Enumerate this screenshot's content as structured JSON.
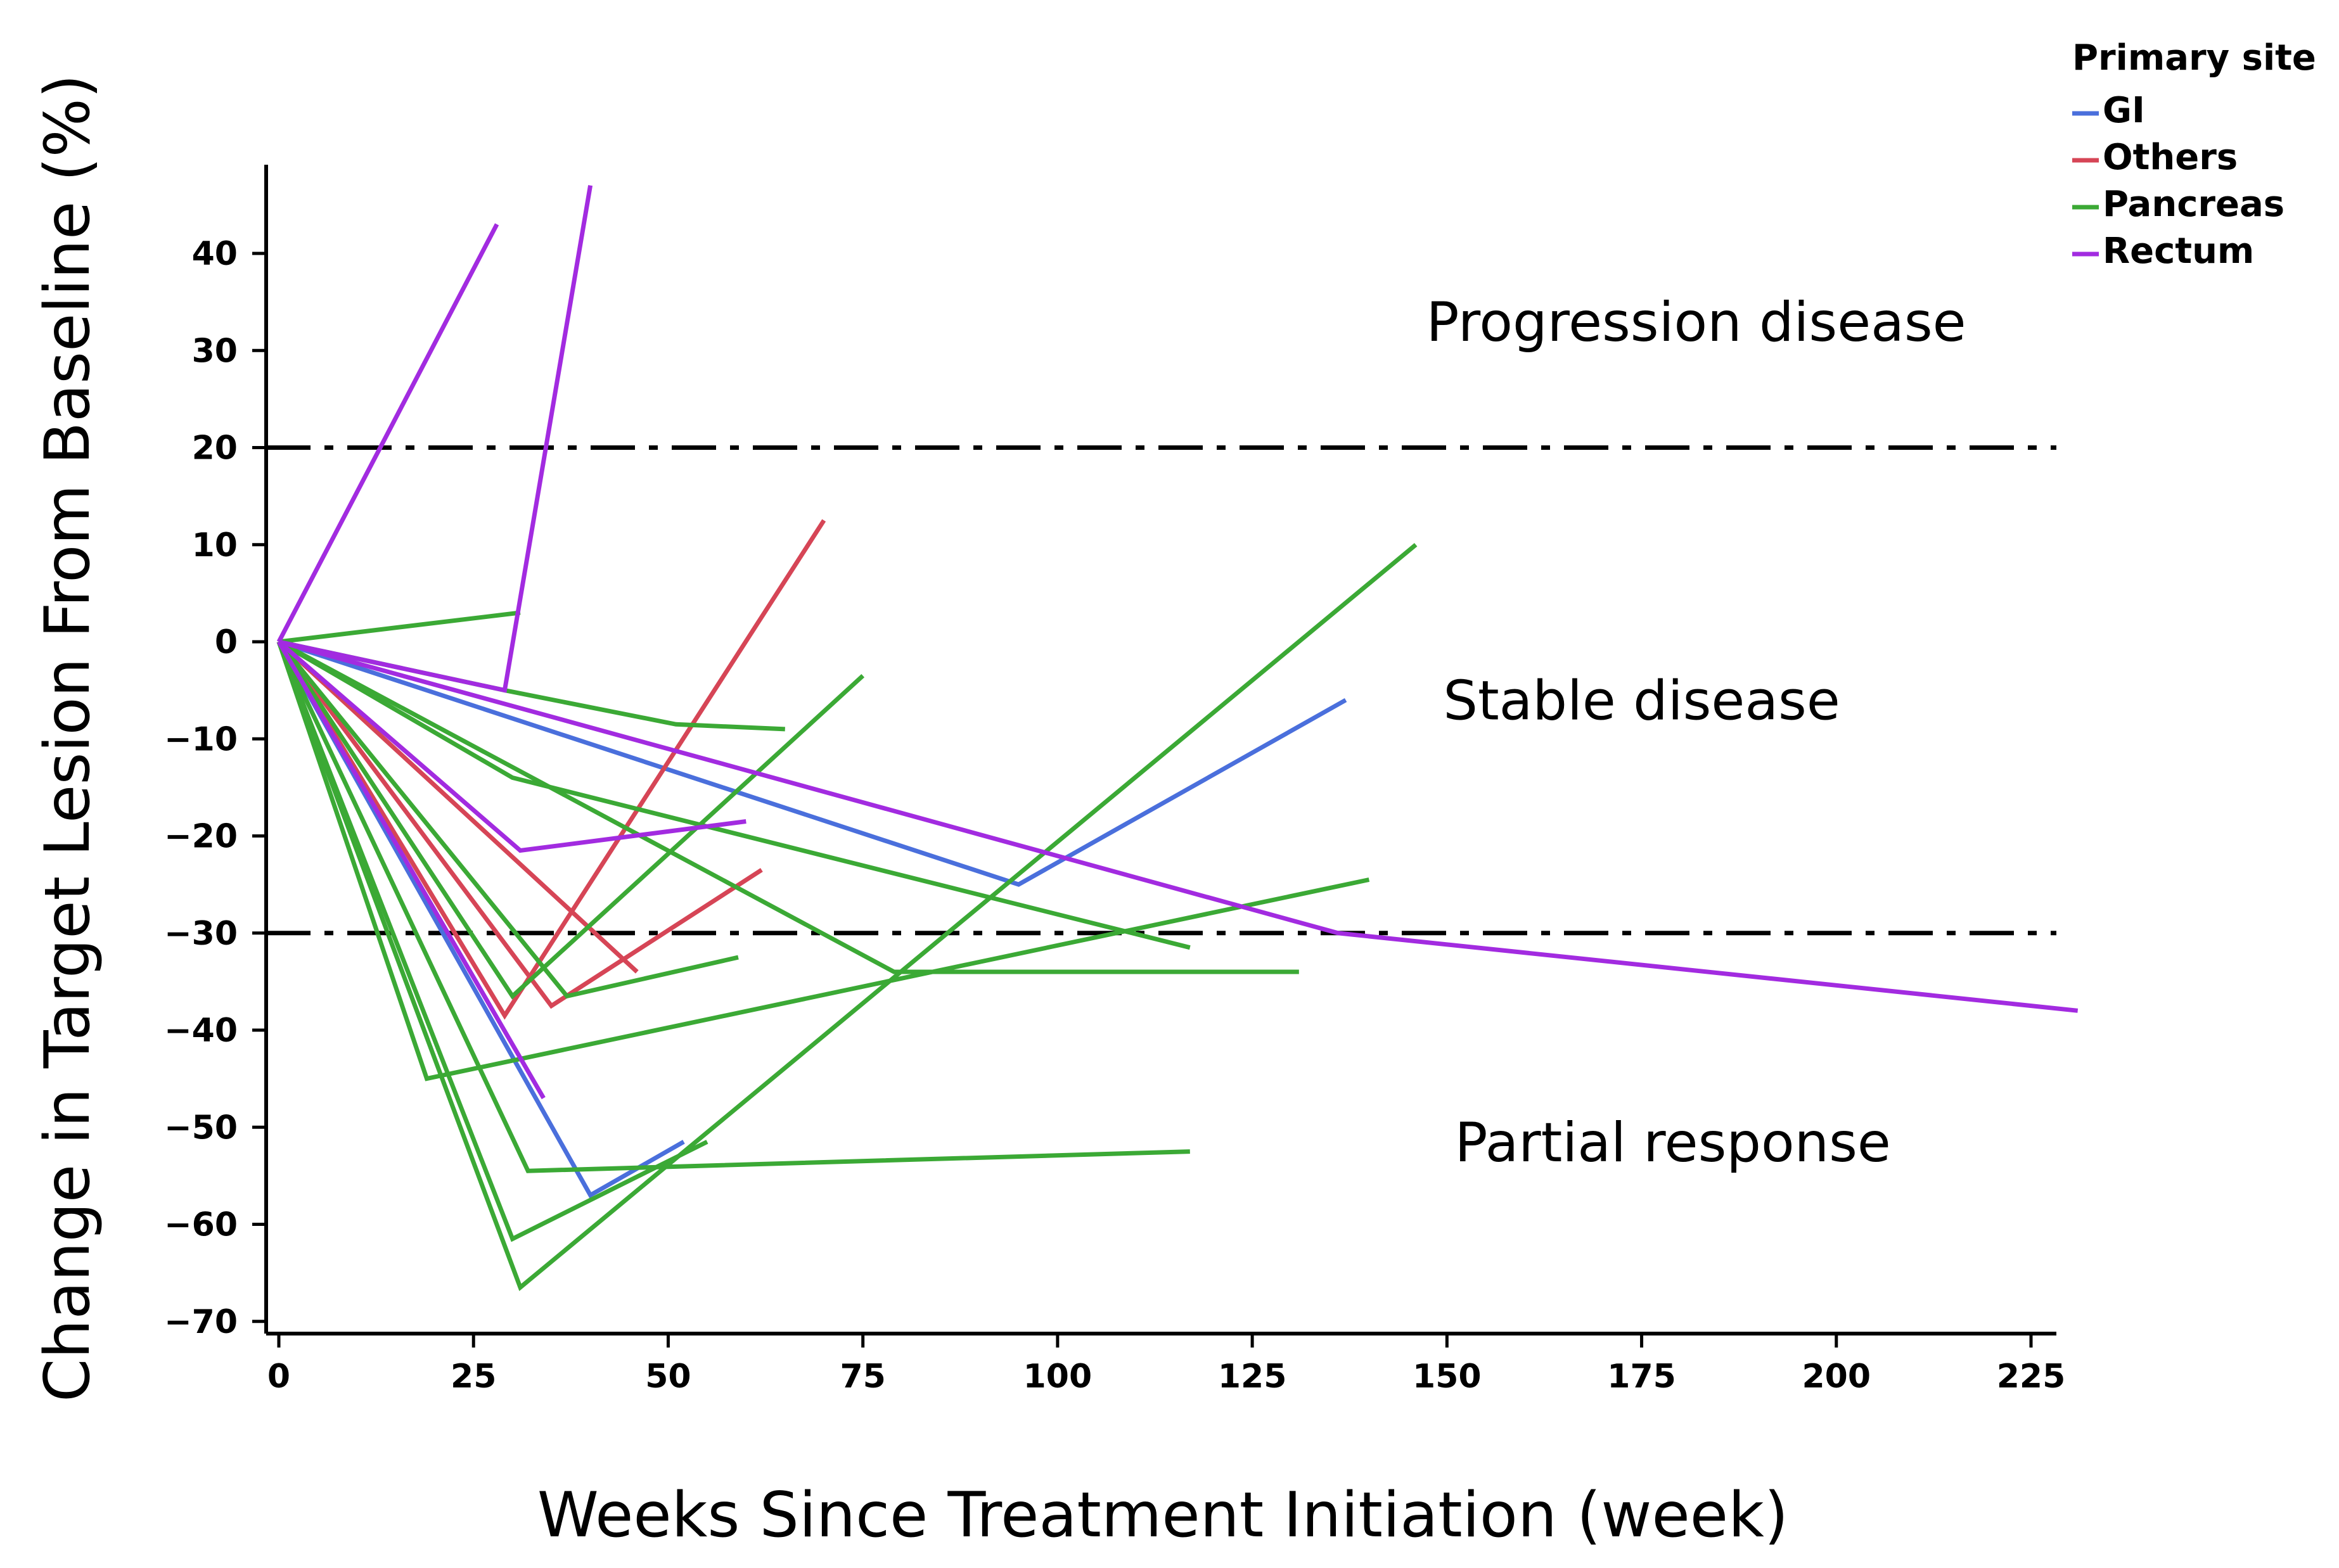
{
  "chart_data": {
    "type": "line",
    "title": "",
    "xlabel": "Weeks Since Treatment Initiation (week)",
    "ylabel": "Change in Target Lesion From Baseline (%)",
    "xlim": [
      -2,
      235
    ],
    "ylim": [
      -71,
      49
    ],
    "xticks": [
      0,
      25,
      50,
      75,
      100,
      125,
      150,
      175,
      200,
      225
    ],
    "yticks": [
      40,
      30,
      20,
      10,
      0,
      -10,
      -20,
      -30,
      -40,
      -50,
      -60,
      -70
    ],
    "reference_lines": [
      20,
      -30
    ],
    "regions": [
      {
        "label": "Progression disease",
        "x": 182,
        "y": 31
      },
      {
        "label": "Stable disease",
        "x": 175,
        "y": -8
      },
      {
        "label": "Partial response",
        "x": 179,
        "y": -53.5
      }
    ],
    "legend": {
      "title": "Primary site",
      "position": "top-right",
      "entries": [
        {
          "name": "GI",
          "color": "#4a6fdc"
        },
        {
          "name": "Others",
          "color": "#d64556"
        },
        {
          "name": "Pancreas",
          "color": "#3ba935"
        },
        {
          "name": "Rectum",
          "color": "#a22be0"
        }
      ]
    },
    "series": [
      {
        "name": "GI",
        "points": [
          [
            0,
            0
          ],
          [
            40,
            -57
          ],
          [
            52,
            -51.5
          ]
        ]
      },
      {
        "name": "GI",
        "points": [
          [
            0,
            0
          ],
          [
            95,
            -25
          ],
          [
            137,
            -6
          ]
        ]
      },
      {
        "name": "Others",
        "points": [
          [
            0,
            0
          ],
          [
            29,
            -38.5
          ],
          [
            70,
            12.5
          ]
        ]
      },
      {
        "name": "Others",
        "points": [
          [
            0,
            0
          ],
          [
            35,
            -37.5
          ],
          [
            62,
            -23.5
          ]
        ]
      },
      {
        "name": "Others",
        "points": [
          [
            0,
            0
          ],
          [
            46,
            -34
          ]
        ]
      },
      {
        "name": "Pancreas",
        "points": [
          [
            0,
            0
          ],
          [
            31,
            3
          ]
        ]
      },
      {
        "name": "Pancreas",
        "points": [
          [
            0,
            0
          ],
          [
            29,
            -5
          ],
          [
            51,
            -8.5
          ],
          [
            65,
            -9
          ]
        ]
      },
      {
        "name": "Pancreas",
        "points": [
          [
            0,
            0
          ],
          [
            30,
            -36.5
          ],
          [
            75,
            -3.5
          ]
        ]
      },
      {
        "name": "Pancreas",
        "points": [
          [
            0,
            0
          ],
          [
            37,
            -36.5
          ],
          [
            59,
            -32.5
          ]
        ]
      },
      {
        "name": "Pancreas",
        "points": [
          [
            0,
            0
          ],
          [
            30,
            -14
          ],
          [
            117,
            -31.5
          ]
        ]
      },
      {
        "name": "Pancreas",
        "points": [
          [
            0,
            0
          ],
          [
            79,
            -34
          ],
          [
            131,
            -34
          ]
        ]
      },
      {
        "name": "Pancreas",
        "points": [
          [
            0,
            0
          ],
          [
            19,
            -45
          ],
          [
            140,
            -24.5
          ]
        ]
      },
      {
        "name": "Pancreas",
        "points": [
          [
            0,
            0
          ],
          [
            32,
            -54.5
          ],
          [
            117,
            -52.5
          ]
        ]
      },
      {
        "name": "Pancreas",
        "points": [
          [
            0,
            0
          ],
          [
            30,
            -61.5
          ],
          [
            55,
            -51.5
          ]
        ]
      },
      {
        "name": "Pancreas",
        "points": [
          [
            0,
            0
          ],
          [
            31,
            -66.5
          ],
          [
            146,
            10
          ]
        ]
      },
      {
        "name": "Rectum",
        "points": [
          [
            0,
            0
          ],
          [
            28,
            43
          ]
        ]
      },
      {
        "name": "Rectum",
        "points": [
          [
            0,
            0
          ],
          [
            29,
            -5
          ],
          [
            40,
            47
          ]
        ]
      },
      {
        "name": "Rectum",
        "points": [
          [
            0,
            0
          ],
          [
            31,
            -21.5
          ],
          [
            60,
            -18.5
          ]
        ]
      },
      {
        "name": "Rectum",
        "points": [
          [
            0,
            0
          ],
          [
            34,
            -47
          ]
        ]
      },
      {
        "name": "Rectum",
        "points": [
          [
            0,
            0
          ],
          [
            136,
            -30
          ],
          [
            231,
            -38
          ]
        ]
      }
    ]
  }
}
